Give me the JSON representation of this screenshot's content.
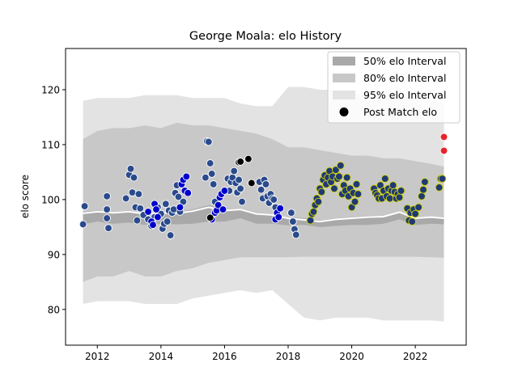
{
  "chart_data": {
    "type": "scatter",
    "title": "George Moala: elo History",
    "xlabel": "",
    "ylabel": "elo score",
    "xlim": [
      2011.0,
      2023.6
    ],
    "ylim": [
      73.5,
      127.5
    ],
    "x_ticks": [
      2012,
      2014,
      2016,
      2018,
      2020,
      2022
    ],
    "y_ticks": [
      80,
      90,
      100,
      110,
      120
    ],
    "grid": false,
    "legend_position": "top-right",
    "legend": [
      "50% elo Interval",
      "80% elo Interval",
      "95% elo Interval",
      "Post Match elo"
    ],
    "colors": {
      "band_50": "#a9a9a9",
      "band_80": "#c8c8c8",
      "band_95": "#e3e3e3",
      "median_line": "#ffffff",
      "median_shadow": "#8a8a8a",
      "legend_marker": "#000000"
    },
    "bands": {
      "x": [
        2011.55,
        2012.0,
        2012.5,
        2013.0,
        2013.5,
        2014.0,
        2014.5,
        2015.0,
        2015.5,
        2016.0,
        2016.5,
        2017.0,
        2017.5,
        2018.0,
        2018.5,
        2019.0,
        2019.5,
        2020.0,
        2020.5,
        2021.0,
        2021.5,
        2022.0,
        2022.5,
        2022.9
      ],
      "median": [
        97.5,
        97.8,
        97.6,
        97.8,
        97.4,
        97.6,
        97.5,
        97.9,
        98.6,
        98.0,
        98.2,
        97.4,
        97.2,
        96.6,
        96.3,
        96.0,
        96.4,
        96.6,
        96.8,
        96.9,
        97.7,
        96.6,
        96.8,
        96.6
      ],
      "q50_low": [
        95.5,
        96.0,
        95.6,
        95.8,
        95.4,
        95.6,
        95.5,
        95.6,
        96.0,
        96.0,
        96.6,
        95.6,
        95.6,
        95.3,
        95.4,
        95.0,
        95.2,
        95.4,
        95.4,
        95.6,
        96.4,
        95.4,
        95.6,
        95.5
      ],
      "q50_high": [
        97.8,
        98.0,
        97.8,
        98.0,
        97.6,
        97.8,
        97.7,
        98.2,
        99.0,
        98.2,
        98.4,
        97.6,
        97.4,
        96.8,
        96.6,
        96.2,
        96.6,
        96.8,
        97.0,
        97.0,
        97.8,
        96.8,
        96.9,
        96.8
      ],
      "q80_low": [
        85.0,
        86.0,
        86.0,
        87.0,
        86.0,
        86.0,
        87.0,
        87.5,
        88.5,
        89.0,
        89.5,
        89.5,
        89.5,
        89.5,
        89.6,
        89.6,
        89.6,
        89.6,
        89.6,
        89.6,
        89.6,
        89.6,
        89.5,
        89.4
      ],
      "q80_high": [
        111.0,
        112.5,
        113.0,
        113.0,
        113.5,
        113.0,
        114.0,
        113.5,
        113.5,
        113.0,
        112.5,
        112.0,
        111.0,
        109.5,
        109.5,
        109.0,
        108.5,
        108.0,
        108.0,
        107.5,
        107.5,
        107.0,
        106.5,
        106.0
      ],
      "q95_low": [
        81.0,
        81.5,
        81.5,
        81.5,
        81.0,
        81.0,
        81.0,
        82.0,
        82.5,
        83.0,
        83.5,
        83.0,
        83.5,
        81.0,
        78.5,
        78.0,
        78.5,
        78.5,
        78.5,
        78.0,
        78.0,
        78.0,
        78.0,
        77.8
      ],
      "q95_high": [
        118.0,
        118.5,
        118.5,
        118.5,
        119.0,
        119.0,
        119.0,
        118.5,
        118.5,
        118.5,
        117.5,
        117.0,
        117.0,
        120.5,
        120.5,
        120.0,
        120.0,
        119.5,
        119.0,
        119.0,
        119.0,
        118.5,
        118.0,
        117.5
      ]
    },
    "series": [
      {
        "color": "#2a4a8c",
        "points": [
          [
            2011.55,
            95.5
          ],
          [
            2011.6,
            98.8
          ],
          [
            2012.3,
            100.6
          ],
          [
            2012.3,
            98.2
          ],
          [
            2012.3,
            96.6
          ],
          [
            2012.35,
            94.8
          ],
          [
            2012.9,
            100.2
          ],
          [
            2013.0,
            104.5
          ],
          [
            2013.05,
            105.6
          ],
          [
            2013.1,
            101.3
          ],
          [
            2013.15,
            104.0
          ],
          [
            2013.2,
            98.6
          ],
          [
            2013.25,
            96.2
          ],
          [
            2013.3,
            101.0
          ],
          [
            2013.35,
            98.4
          ],
          [
            2013.45,
            97.2
          ],
          [
            2013.6,
            96.4
          ],
          [
            2013.7,
            95.2
          ],
          [
            2013.8,
            96.8
          ],
          [
            2013.9,
            98.6
          ],
          [
            2014.0,
            97.4
          ],
          [
            2014.05,
            94.7
          ],
          [
            2014.1,
            95.6
          ],
          [
            2014.15,
            99.2
          ],
          [
            2014.2,
            96.0
          ],
          [
            2014.25,
            98.0
          ],
          [
            2014.3,
            93.5
          ],
          [
            2014.35,
            97.6
          ],
          [
            2014.4,
            98.2
          ],
          [
            2014.45,
            101.2
          ],
          [
            2014.5,
            102.6
          ],
          [
            2014.55,
            100.5
          ],
          [
            2014.6,
            97.8
          ],
          [
            2014.7,
            99.6
          ],
          [
            2015.4,
            104.0
          ],
          [
            2015.45,
            110.6
          ],
          [
            2015.5,
            110.5
          ],
          [
            2015.55,
            106.6
          ],
          [
            2015.6,
            104.7
          ],
          [
            2015.65,
            102.8
          ],
          [
            2015.7,
            99.6
          ],
          [
            2016.1,
            103.8
          ],
          [
            2016.15,
            101.6
          ],
          [
            2016.2,
            103.2
          ],
          [
            2016.25,
            104.0
          ],
          [
            2016.3,
            105.2
          ],
          [
            2016.35,
            103.0
          ],
          [
            2016.4,
            101.3
          ],
          [
            2016.45,
            103.6
          ],
          [
            2016.5,
            102.0
          ],
          [
            2016.55,
            99.6
          ],
          [
            2017.1,
            103.2
          ],
          [
            2017.15,
            101.8
          ],
          [
            2017.2,
            100.2
          ],
          [
            2017.25,
            103.6
          ],
          [
            2017.3,
            102.8
          ],
          [
            2017.35,
            100.6
          ],
          [
            2017.4,
            99.4
          ],
          [
            2017.45,
            101.0
          ],
          [
            2017.5,
            100.2
          ],
          [
            2017.55,
            100.0
          ],
          [
            2017.6,
            98.6
          ],
          [
            2018.1,
            97.6
          ],
          [
            2018.15,
            96.0
          ],
          [
            2018.2,
            94.6
          ],
          [
            2018.25,
            93.6
          ]
        ]
      },
      {
        "color": "#0000cc",
        "points": [
          [
            2013.6,
            97.8
          ],
          [
            2013.7,
            96.0
          ],
          [
            2013.75,
            95.4
          ],
          [
            2013.8,
            99.2
          ],
          [
            2013.85,
            98.2
          ],
          [
            2013.9,
            96.8
          ],
          [
            2014.6,
            98.6
          ],
          [
            2014.65,
            102.8
          ],
          [
            2014.7,
            103.6
          ],
          [
            2014.75,
            101.6
          ],
          [
            2014.8,
            104.2
          ],
          [
            2014.85,
            101.2
          ],
          [
            2015.6,
            96.4
          ],
          [
            2015.7,
            97.6
          ],
          [
            2015.75,
            98.0
          ],
          [
            2015.8,
            99.0
          ],
          [
            2015.85,
            100.4
          ],
          [
            2015.9,
            101.0
          ],
          [
            2015.95,
            98.2
          ],
          [
            2016.0,
            101.6
          ],
          [
            2017.6,
            96.4
          ],
          [
            2017.65,
            97.6
          ],
          [
            2017.7,
            96.8
          ],
          [
            2017.75,
            98.4
          ]
        ]
      },
      {
        "color": "#000000",
        "points": [
          [
            2015.55,
            96.7
          ],
          [
            2016.45,
            106.8
          ],
          [
            2016.5,
            106.9
          ],
          [
            2016.75,
            107.4
          ],
          [
            2016.85,
            103.0
          ]
        ]
      },
      {
        "color": "#1f3a73",
        "edge": "#d4d400",
        "points": [
          [
            2018.7,
            96.2
          ],
          [
            2018.75,
            97.4
          ],
          [
            2018.8,
            97.8
          ],
          [
            2018.85,
            99.0
          ],
          [
            2018.9,
            100.2
          ],
          [
            2018.95,
            99.6
          ],
          [
            2019.0,
            102.0
          ],
          [
            2019.05,
            101.4
          ],
          [
            2019.1,
            103.6
          ],
          [
            2019.15,
            104.4
          ],
          [
            2019.2,
            102.8
          ],
          [
            2019.25,
            104.0
          ],
          [
            2019.3,
            105.2
          ],
          [
            2019.35,
            103.2
          ],
          [
            2019.4,
            104.2
          ],
          [
            2019.45,
            102.0
          ],
          [
            2019.5,
            105.4
          ],
          [
            2019.55,
            103.8
          ],
          [
            2019.6,
            104.2
          ],
          [
            2019.65,
            106.2
          ],
          [
            2019.7,
            101.0
          ],
          [
            2019.75,
            102.6
          ],
          [
            2019.8,
            101.6
          ],
          [
            2019.85,
            104.0
          ],
          [
            2019.9,
            100.6
          ],
          [
            2019.95,
            102.0
          ],
          [
            2020.0,
            98.6
          ],
          [
            2020.05,
            101.2
          ],
          [
            2020.1,
            99.6
          ],
          [
            2020.15,
            102.8
          ],
          [
            2020.2,
            101.0
          ],
          [
            2020.7,
            102.0
          ],
          [
            2020.75,
            101.2
          ],
          [
            2020.8,
            100.8
          ],
          [
            2020.85,
            100.2
          ],
          [
            2020.9,
            102.6
          ],
          [
            2020.95,
            100.2
          ],
          [
            2021.0,
            101.6
          ],
          [
            2021.05,
            103.8
          ],
          [
            2021.1,
            100.6
          ],
          [
            2021.15,
            102.0
          ],
          [
            2021.2,
            100.2
          ],
          [
            2021.25,
            101.6
          ],
          [
            2021.3,
            102.6
          ],
          [
            2021.35,
            101.4
          ],
          [
            2021.4,
            100.2
          ],
          [
            2021.45,
            101.0
          ],
          [
            2021.5,
            100.4
          ],
          [
            2021.55,
            101.6
          ],
          [
            2021.75,
            98.4
          ],
          [
            2021.8,
            96.2
          ],
          [
            2021.85,
            97.6
          ],
          [
            2021.9,
            96.0
          ],
          [
            2021.95,
            98.2
          ],
          [
            2022.0,
            97.4
          ],
          [
            2022.1,
            98.6
          ],
          [
            2022.2,
            100.6
          ],
          [
            2022.25,
            101.8
          ],
          [
            2022.3,
            103.2
          ],
          [
            2022.75,
            102.2
          ],
          [
            2022.8,
            103.8
          ],
          [
            2022.85,
            103.8
          ]
        ]
      },
      {
        "color": "#e8232a",
        "points": [
          [
            2022.9,
            111.4
          ],
          [
            2022.9,
            108.9
          ]
        ]
      }
    ]
  }
}
